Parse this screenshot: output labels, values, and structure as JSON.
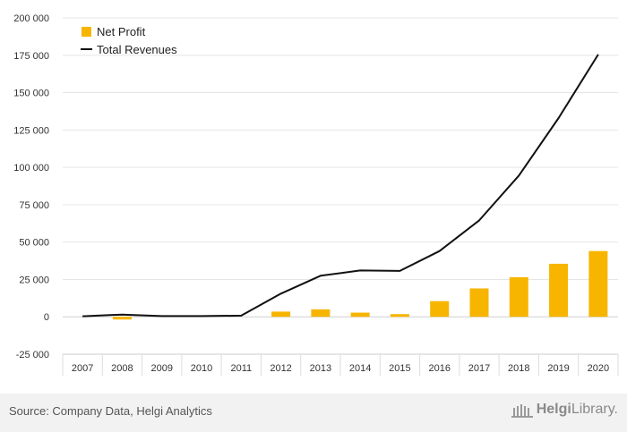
{
  "chart_data": {
    "type": "bar+line",
    "categories": [
      "2007",
      "2008",
      "2009",
      "2010",
      "2011",
      "2012",
      "2013",
      "2014",
      "2015",
      "2016",
      "2017",
      "2018",
      "2019",
      "2020"
    ],
    "series": [
      {
        "name": "Net Profit",
        "kind": "bar",
        "color": "#f7b500",
        "values": [
          0,
          -1800,
          0,
          0,
          0,
          3500,
          5000,
          2800,
          1800,
          10500,
          19000,
          26500,
          35500,
          44000
        ]
      },
      {
        "name": "Total Revenues",
        "kind": "line",
        "color": "#111111",
        "values": [
          400,
          1500,
          500,
          500,
          800,
          15500,
          27500,
          31000,
          30700,
          44000,
          64500,
          94500,
          133000,
          175500
        ]
      }
    ],
    "y_ticks": [
      "200 000",
      "175 000",
      "150 000",
      "125 000",
      "100 000",
      "75 000",
      "50 000",
      "25 000",
      "0",
      "-25 000"
    ],
    "ylim": [
      -25000,
      200000
    ],
    "grid": true,
    "legend": "top-left"
  },
  "footer": {
    "source": "Source: Company Data, Helgi Analytics",
    "brand_strong": "Helgi",
    "brand_rest": "Library."
  }
}
